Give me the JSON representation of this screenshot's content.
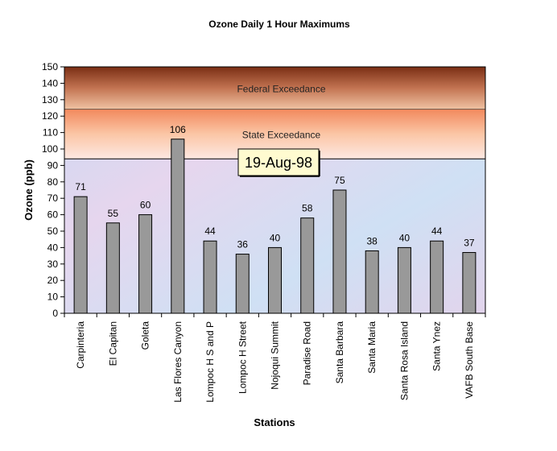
{
  "chart_data": {
    "type": "bar",
    "title": "Ozone Daily 1 Hour Maximums",
    "xlabel": "Stations",
    "ylabel": "Ozone (ppb)",
    "ylim": [
      0,
      150
    ],
    "yticks": [
      0,
      10,
      20,
      30,
      40,
      50,
      60,
      70,
      80,
      90,
      100,
      110,
      120,
      130,
      140,
      150
    ],
    "categories": [
      "Carpinteria",
      "El Capitan",
      "Goleta",
      "Las Flores Canyon",
      "Lompoc H S and P",
      "Lompoc H Street",
      "Nojoqui Summit",
      "Paradise Road",
      "Santa Barbara",
      "Santa Maria",
      "Santa Rosa Island",
      "Santa Ynez",
      "VAFB South Base"
    ],
    "values": [
      71,
      55,
      60,
      106,
      44,
      36,
      40,
      58,
      75,
      38,
      40,
      44,
      37
    ],
    "bar_color": "#999999",
    "zones": [
      {
        "label": "Federal Exceedance",
        "from": 124,
        "to": 150,
        "color": "#a8583a"
      },
      {
        "label": "State Exceedance",
        "from": 94,
        "to": 124,
        "color": "#f7a37c"
      }
    ],
    "annotation": "19-Aug-98",
    "grid": false
  }
}
